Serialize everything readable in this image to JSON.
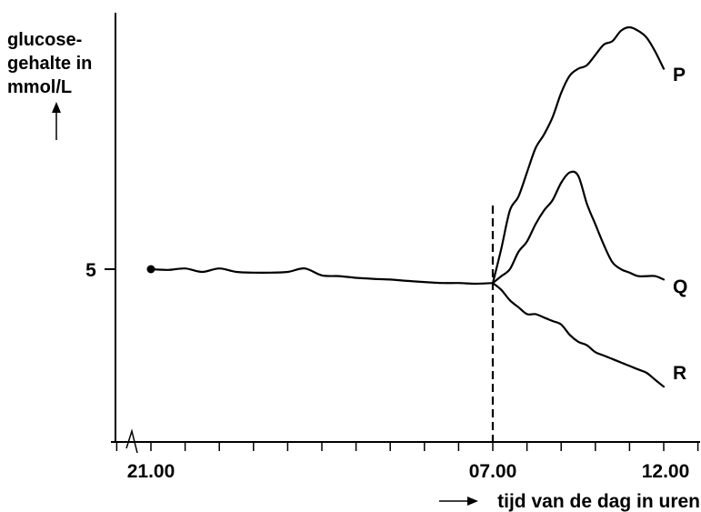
{
  "chart_data": {
    "type": "line",
    "ylabel": [
      "glucose-",
      "gehalte in",
      "mmol/L"
    ],
    "xlabel": "tijd van de dag in uren",
    "y_ticks": [
      5
    ],
    "x_ticks": [
      "21.00",
      "07.00",
      "12.00"
    ],
    "x_range_hours": [
      20.5,
      13.0
    ],
    "y_range": [
      0,
      12.5
    ],
    "breakfast_marker_time": "07.00",
    "baseline": {
      "x": [
        21.0,
        21.5,
        22.0,
        22.5,
        23.0,
        23.5,
        24.0,
        24.5,
        25.0,
        25.5,
        26.0,
        26.5,
        27.0,
        27.5,
        28.0,
        28.5,
        29.0,
        29.5,
        30.0,
        30.5,
        31.0
      ],
      "values": [
        5.0,
        4.98,
        5.02,
        4.92,
        5.02,
        4.92,
        4.9,
        4.9,
        4.92,
        5.02,
        4.82,
        4.8,
        4.75,
        4.72,
        4.7,
        4.66,
        4.63,
        4.6,
        4.6,
        4.58,
        4.6
      ]
    },
    "series": [
      {
        "name": "P",
        "x": [
          31.0,
          31.25,
          31.5,
          31.75,
          32.0,
          32.25,
          32.5,
          32.75,
          33.0,
          33.25,
          33.5,
          33.75,
          34.0,
          34.25,
          34.5,
          34.75,
          35.0,
          35.25,
          35.5,
          35.75,
          36.0
        ],
        "values": [
          4.6,
          5.6,
          6.7,
          7.1,
          7.8,
          8.5,
          8.9,
          9.4,
          10.1,
          10.6,
          10.8,
          10.9,
          11.2,
          11.5,
          11.6,
          11.9,
          12.0,
          11.9,
          11.7,
          11.3,
          10.8
        ]
      },
      {
        "name": "Q",
        "x": [
          31.0,
          31.25,
          31.5,
          31.75,
          32.0,
          32.25,
          32.5,
          32.75,
          33.0,
          33.25,
          33.5,
          33.75,
          34.0,
          34.25,
          34.5,
          34.75,
          35.0,
          35.25,
          35.5,
          35.75,
          36.0
        ],
        "values": [
          4.6,
          4.8,
          5.0,
          5.5,
          5.8,
          6.3,
          6.7,
          7.0,
          7.5,
          7.8,
          7.7,
          6.9,
          6.3,
          5.7,
          5.2,
          5.0,
          4.9,
          4.8,
          4.8,
          4.8,
          4.7
        ]
      },
      {
        "name": "R",
        "x": [
          31.0,
          31.25,
          31.5,
          31.75,
          32.0,
          32.25,
          32.5,
          32.75,
          33.0,
          33.25,
          33.5,
          33.75,
          34.0,
          34.25,
          34.5,
          34.75,
          35.0,
          35.25,
          35.5,
          35.75,
          36.0
        ],
        "values": [
          4.6,
          4.4,
          4.1,
          3.9,
          3.7,
          3.7,
          3.6,
          3.5,
          3.4,
          3.1,
          2.9,
          2.8,
          2.6,
          2.5,
          2.4,
          2.3,
          2.2,
          2.1,
          2.0,
          1.8,
          1.6
        ]
      }
    ]
  }
}
